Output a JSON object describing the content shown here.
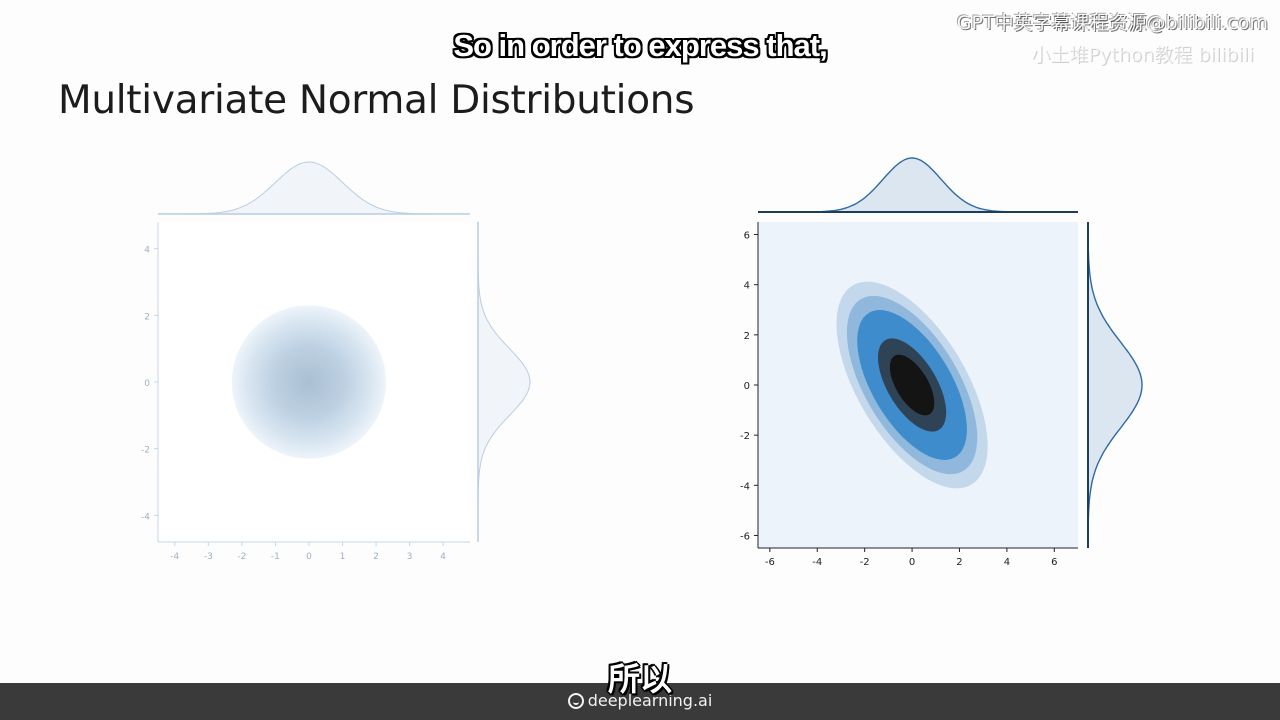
{
  "slide": {
    "title": "Multivariate Normal Distributions",
    "subtitle_en": "So in order to express that,",
    "subtitle_zh": "所以",
    "watermark_top": "GPT中英字幕课程资源@bilibili.com",
    "watermark_bottom": "小土堆Python教程 bilibili",
    "brand": "deeplearning.ai"
  },
  "colors": {
    "background": "#fdfdfd",
    "footer": "#3a3a3a",
    "left_blue": "#aec6dc",
    "right_dark": "#1f77b4"
  },
  "chart_data": [
    {
      "type": "heatmap",
      "subtype": "joint-kde-with-marginals",
      "center": [
        0,
        0
      ],
      "covariance": [
        [
          1,
          0
        ],
        [
          0,
          1
        ]
      ],
      "xlim": [
        -4.5,
        4.8
      ],
      "ylim": [
        -4.8,
        4.8
      ],
      "xticks": [
        "-4",
        "-3",
        "-2",
        "-1",
        "0",
        "1",
        "2",
        "3",
        "4"
      ],
      "yticks": [
        "-4",
        "-2",
        "0",
        "2",
        "4"
      ],
      "colormap": "light blue (faded)",
      "marginal_x": "standard normal density",
      "marginal_y": "standard normal density",
      "grid": false
    },
    {
      "type": "heatmap",
      "subtype": "joint-kde-with-marginals",
      "center": [
        0,
        0
      ],
      "covariance": [
        [
          1.5,
          -1.3
        ],
        [
          -1.3,
          2.9
        ]
      ],
      "contour_levels": 5,
      "xlim": [
        -6.5,
        7
      ],
      "ylim": [
        -6.5,
        6.5
      ],
      "xticks": [
        "-6",
        "-4",
        "-2",
        "0",
        "2",
        "4",
        "6"
      ],
      "yticks": [
        "-6",
        "-4",
        "-2",
        "0",
        "2",
        "4",
        "6"
      ],
      "colormap": "Blues to black",
      "marginal_x": "normal density",
      "marginal_y": "normal density",
      "grid": false
    }
  ]
}
